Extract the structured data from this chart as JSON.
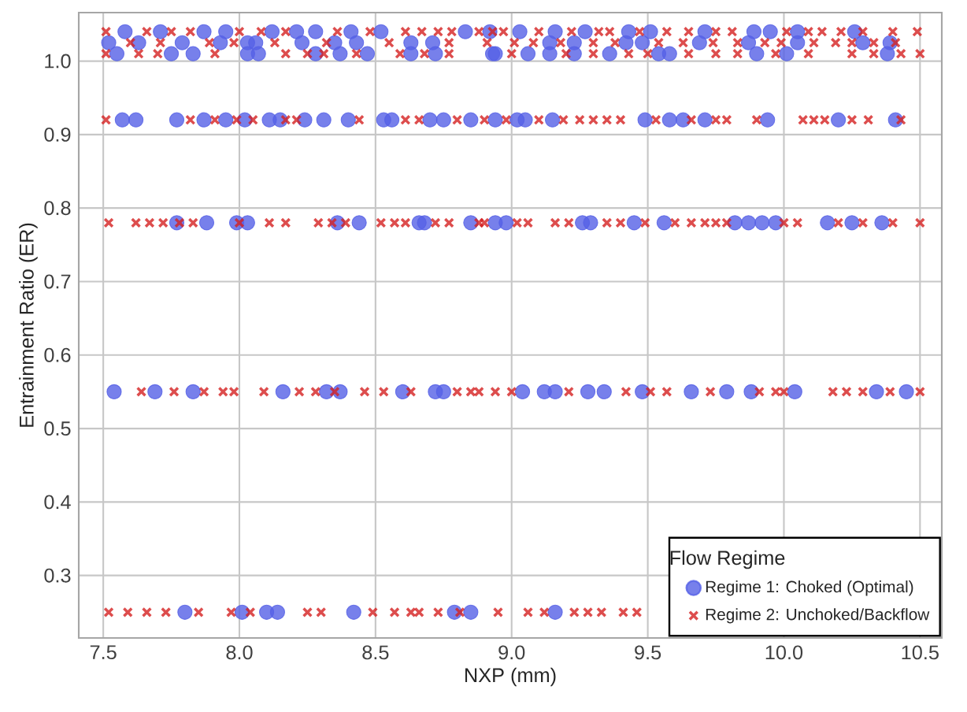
{
  "chart_data": {
    "type": "scatter",
    "xlabel": "NXP (mm)",
    "ylabel": "Entrainment Ratio (ER)",
    "legend_title": "Flow Regime",
    "legend": "bottom right",
    "grid": true,
    "xlim": [
      7.41,
      10.58
    ],
    "ylim": [
      0.215,
      1.066
    ],
    "xticks": [
      7.5,
      {
        "value": 8,
        "label": "8.0"
      },
      8.5,
      {
        "value": 9,
        "label": "9.0"
      },
      9.5,
      {
        "value": 10,
        "label": "10.0"
      },
      10.5
    ],
    "yticks": [
      0.3,
      0.4,
      0.5,
      0.6,
      0.7,
      0.8,
      0.9,
      {
        "value": 1,
        "label": "1.0"
      }
    ],
    "series": [
      {
        "name": "Regime 1: Choked (Optimal)",
        "color": "#5560e6",
        "marker": "circle",
        "x": [
          7.58,
          7.71,
          7.87,
          7.95,
          8.12,
          8.21,
          8.28,
          8.41,
          8.52,
          8.83,
          8.92,
          9.03,
          9.16,
          9.27,
          9.43,
          9.51,
          9.71,
          9.89,
          9.95,
          10.05,
          10.26,
          7.52,
          7.63,
          7.79,
          7.93,
          8.03,
          8.06,
          8.23,
          8.35,
          8.43,
          8.63,
          8.71,
          9.14,
          9.23,
          9.42,
          9.48,
          9.69,
          9.87,
          10.05,
          10.29,
          10.39,
          7.55,
          7.75,
          7.83,
          8.03,
          8.07,
          8.28,
          8.37,
          8.47,
          8.63,
          8.72,
          8.93,
          8.94,
          9.06,
          9.14,
          9.23,
          9.36,
          9.54,
          9.58,
          9.9,
          10.01,
          10.38,
          7.57,
          7.62,
          7.77,
          7.87,
          7.95,
          8.02,
          8.11,
          8.15,
          8.24,
          8.31,
          8.4,
          8.53,
          8.56,
          8.7,
          8.75,
          8.85,
          8.94,
          9.02,
          9.05,
          9.15,
          9.49,
          9.58,
          9.63,
          9.71,
          9.94,
          10.2,
          10.41,
          7.77,
          7.88,
          7.99,
          8.03,
          8.36,
          8.44,
          8.66,
          8.68,
          8.85,
          8.94,
          8.98,
          9.26,
          9.29,
          9.45,
          9.56,
          9.82,
          9.87,
          9.92,
          9.97,
          10.16,
          10.25,
          10.36,
          7.54,
          7.69,
          7.83,
          8.16,
          8.32,
          8.37,
          8.6,
          8.72,
          8.75,
          9.04,
          9.12,
          9.16,
          9.28,
          9.34,
          9.48,
          9.66,
          9.79,
          9.88,
          10.04,
          10.34,
          10.45,
          7.8,
          8.01,
          8.1,
          8.14,
          8.42,
          8.79,
          8.85,
          9.16
        ],
        "values": [
          1.04,
          1.04,
          1.04,
          1.04,
          1.04,
          1.04,
          1.04,
          1.04,
          1.04,
          1.04,
          1.04,
          1.04,
          1.04,
          1.04,
          1.04,
          1.04,
          1.04,
          1.04,
          1.04,
          1.04,
          1.04,
          1.025,
          1.025,
          1.025,
          1.025,
          1.025,
          1.025,
          1.025,
          1.025,
          1.025,
          1.025,
          1.025,
          1.025,
          1.025,
          1.025,
          1.025,
          1.025,
          1.025,
          1.025,
          1.025,
          1.025,
          1.01,
          1.01,
          1.01,
          1.01,
          1.01,
          1.01,
          1.01,
          1.01,
          1.01,
          1.01,
          1.01,
          1.01,
          1.01,
          1.01,
          1.01,
          1.01,
          1.01,
          1.01,
          1.01,
          1.01,
          1.01,
          0.92,
          0.92,
          0.92,
          0.92,
          0.92,
          0.92,
          0.92,
          0.92,
          0.92,
          0.92,
          0.92,
          0.92,
          0.92,
          0.92,
          0.92,
          0.92,
          0.92,
          0.92,
          0.92,
          0.92,
          0.92,
          0.92,
          0.92,
          0.92,
          0.92,
          0.92,
          0.92,
          0.78,
          0.78,
          0.78,
          0.78,
          0.78,
          0.78,
          0.78,
          0.78,
          0.78,
          0.78,
          0.78,
          0.78,
          0.78,
          0.78,
          0.78,
          0.78,
          0.78,
          0.78,
          0.78,
          0.78,
          0.78,
          0.78,
          0.55,
          0.55,
          0.55,
          0.55,
          0.55,
          0.55,
          0.55,
          0.55,
          0.55,
          0.55,
          0.55,
          0.55,
          0.55,
          0.55,
          0.55,
          0.55,
          0.55,
          0.55,
          0.55,
          0.55,
          0.55,
          0.25,
          0.25,
          0.25,
          0.25,
          0.25,
          0.25,
          0.25,
          0.25
        ]
      },
      {
        "name": "Regime 2: Unchoked/Backflow",
        "color": "#d42020",
        "marker": "cross",
        "x": [
          7.51,
          7.66,
          7.75,
          7.82,
          8.0,
          8.08,
          8.17,
          8.36,
          8.48,
          8.61,
          8.67,
          8.73,
          8.78,
          8.88,
          8.93,
          8.97,
          9.1,
          9.22,
          9.32,
          9.36,
          9.47,
          9.57,
          9.65,
          9.75,
          9.81,
          10.01,
          10.09,
          10.14,
          10.21,
          10.29,
          10.4,
          10.49,
          7.6,
          7.71,
          7.89,
          7.98,
          8.13,
          8.32,
          8.55,
          8.77,
          8.91,
          9.01,
          9.08,
          9.18,
          9.3,
          9.38,
          9.54,
          9.63,
          9.74,
          9.83,
          9.93,
          9.99,
          10.11,
          10.19,
          10.25,
          10.33,
          10.41,
          7.51,
          7.63,
          7.7,
          7.91,
          8.17,
          8.25,
          8.31,
          8.43,
          8.59,
          8.68,
          8.77,
          9.0,
          9.2,
          9.3,
          9.43,
          9.5,
          9.65,
          9.75,
          9.83,
          9.97,
          10.09,
          10.25,
          10.33,
          10.43,
          10.5,
          7.51,
          7.82,
          7.91,
          7.99,
          8.05,
          8.17,
          8.21,
          8.44,
          8.61,
          8.66,
          8.8,
          8.9,
          8.98,
          9.1,
          9.19,
          9.25,
          9.3,
          9.35,
          9.4,
          9.53,
          9.66,
          9.75,
          9.79,
          9.9,
          10.07,
          10.11,
          10.15,
          10.25,
          10.31,
          10.43,
          7.52,
          7.62,
          7.67,
          7.72,
          7.78,
          7.83,
          8.0,
          8.11,
          8.17,
          8.29,
          8.34,
          8.39,
          8.52,
          8.57,
          8.61,
          8.72,
          8.77,
          8.88,
          8.9,
          9.02,
          9.06,
          9.16,
          9.21,
          9.35,
          9.4,
          9.49,
          9.6,
          9.66,
          9.71,
          9.75,
          9.79,
          10.0,
          10.05,
          10.2,
          10.29,
          10.4,
          10.5,
          7.64,
          7.76,
          7.87,
          7.94,
          7.98,
          8.09,
          8.22,
          8.28,
          8.35,
          8.46,
          8.53,
          8.63,
          8.8,
          8.85,
          8.88,
          8.94,
          9.0,
          9.21,
          9.42,
          9.51,
          9.57,
          9.73,
          9.91,
          9.97,
          10.0,
          10.18,
          10.23,
          10.29,
          10.39,
          10.5,
          7.52,
          7.59,
          7.66,
          7.73,
          7.85,
          7.97,
          8.04,
          8.25,
          8.3,
          8.49,
          8.57,
          8.63,
          8.66,
          8.73,
          8.81,
          8.95,
          9.06,
          9.12,
          9.23,
          9.28,
          9.33,
          9.41,
          9.46
        ],
        "values": [
          1.04,
          1.04,
          1.04,
          1.04,
          1.04,
          1.04,
          1.04,
          1.04,
          1.04,
          1.04,
          1.04,
          1.04,
          1.04,
          1.04,
          1.04,
          1.04,
          1.04,
          1.04,
          1.04,
          1.04,
          1.04,
          1.04,
          1.04,
          1.04,
          1.04,
          1.04,
          1.04,
          1.04,
          1.04,
          1.04,
          1.04,
          1.04,
          1.025,
          1.025,
          1.025,
          1.025,
          1.025,
          1.025,
          1.025,
          1.025,
          1.025,
          1.025,
          1.025,
          1.025,
          1.025,
          1.025,
          1.025,
          1.025,
          1.025,
          1.025,
          1.025,
          1.025,
          1.025,
          1.025,
          1.025,
          1.025,
          1.025,
          1.01,
          1.01,
          1.01,
          1.01,
          1.01,
          1.01,
          1.01,
          1.01,
          1.01,
          1.01,
          1.01,
          1.01,
          1.01,
          1.01,
          1.01,
          1.01,
          1.01,
          1.01,
          1.01,
          1.01,
          1.01,
          1.01,
          1.01,
          1.01,
          1.01,
          0.92,
          0.92,
          0.92,
          0.92,
          0.92,
          0.92,
          0.92,
          0.92,
          0.92,
          0.92,
          0.92,
          0.92,
          0.92,
          0.92,
          0.92,
          0.92,
          0.92,
          0.92,
          0.92,
          0.92,
          0.92,
          0.92,
          0.92,
          0.92,
          0.92,
          0.92,
          0.92,
          0.92,
          0.92,
          0.92,
          0.78,
          0.78,
          0.78,
          0.78,
          0.78,
          0.78,
          0.78,
          0.78,
          0.78,
          0.78,
          0.78,
          0.78,
          0.78,
          0.78,
          0.78,
          0.78,
          0.78,
          0.78,
          0.78,
          0.78,
          0.78,
          0.78,
          0.78,
          0.78,
          0.78,
          0.78,
          0.78,
          0.78,
          0.78,
          0.78,
          0.78,
          0.78,
          0.78,
          0.78,
          0.78,
          0.78,
          0.78,
          0.55,
          0.55,
          0.55,
          0.55,
          0.55,
          0.55,
          0.55,
          0.55,
          0.55,
          0.55,
          0.55,
          0.55,
          0.55,
          0.55,
          0.55,
          0.55,
          0.55,
          0.55,
          0.55,
          0.55,
          0.55,
          0.55,
          0.55,
          0.55,
          0.55,
          0.55,
          0.55,
          0.55,
          0.55,
          0.55,
          0.25,
          0.25,
          0.25,
          0.25,
          0.25,
          0.25,
          0.25,
          0.25,
          0.25,
          0.25,
          0.25,
          0.25,
          0.25,
          0.25,
          0.25,
          0.25,
          0.25,
          0.25,
          0.25,
          0.25,
          0.25,
          0.25,
          0.25
        ]
      }
    ]
  }
}
